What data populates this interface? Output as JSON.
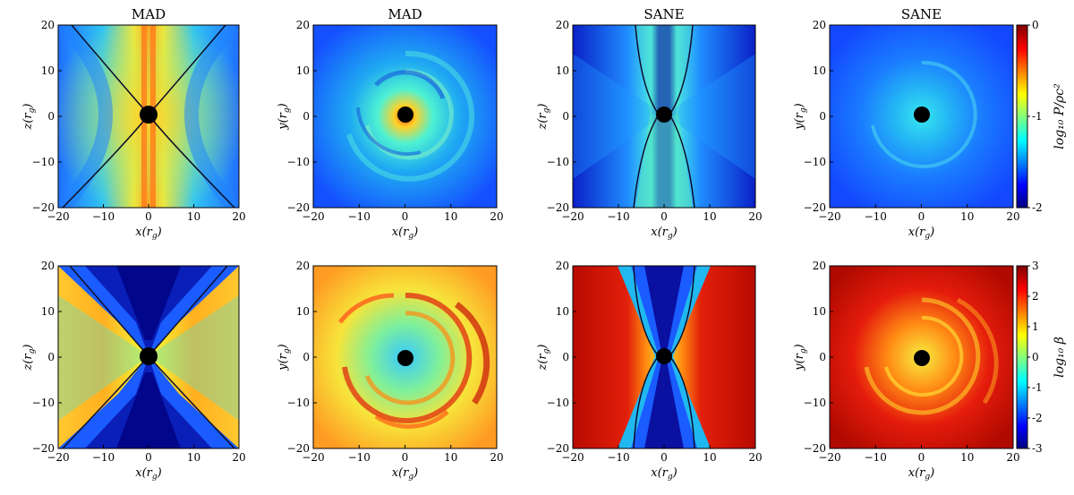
{
  "figure": {
    "panels": [
      {
        "title": "MAD",
        "xlabel": "x(r_g)",
        "ylabel": "z(r_g)",
        "quantity": "pressure_ratio",
        "view": "poloidal"
      },
      {
        "title": "MAD",
        "xlabel": "x(r_g)",
        "ylabel": "y(r_g)",
        "quantity": "pressure_ratio",
        "view": "equatorial"
      },
      {
        "title": "SANE",
        "xlabel": "x(r_g)",
        "ylabel": "z(r_g)",
        "quantity": "pressure_ratio",
        "view": "poloidal"
      },
      {
        "title": "SANE",
        "xlabel": "x(r_g)",
        "ylabel": "y(r_g)",
        "quantity": "pressure_ratio",
        "view": "equatorial"
      },
      {
        "title": "",
        "xlabel": "x(r_g)",
        "ylabel": "z(r_g)",
        "quantity": "plasma_beta",
        "view": "poloidal"
      },
      {
        "title": "",
        "xlabel": "x(r_g)",
        "ylabel": "y(r_g)",
        "quantity": "plasma_beta",
        "view": "equatorial"
      },
      {
        "title": "",
        "xlabel": "x(r_g)",
        "ylabel": "z(r_g)",
        "quantity": "plasma_beta",
        "view": "poloidal"
      },
      {
        "title": "",
        "xlabel": "x(r_g)",
        "ylabel": "y(r_g)",
        "quantity": "plasma_beta",
        "view": "equatorial"
      }
    ],
    "axis_range": [
      -20,
      20
    ],
    "ticks": [
      "−20",
      "−10",
      "0",
      "10",
      "20"
    ],
    "colorbars": [
      {
        "label": "log₁₀ P/ρc²",
        "ticks": [
          "0",
          "-1",
          "-2"
        ],
        "range": [
          -2,
          0
        ]
      },
      {
        "label": "log₁₀ β",
        "ticks": [
          "3",
          "2",
          "1",
          "0",
          "-1",
          "-2",
          "-3"
        ],
        "range": [
          -3,
          3
        ]
      }
    ],
    "colormap": "jet",
    "colors": {
      "jet_dark_blue": "#00007f",
      "jet_blue": "#0000ff",
      "jet_cyan": "#00ffff",
      "jet_yellow": "#ffff00",
      "jet_red": "#ff0000",
      "jet_dark_red": "#7f0000",
      "black_hole": "#000000"
    }
  }
}
